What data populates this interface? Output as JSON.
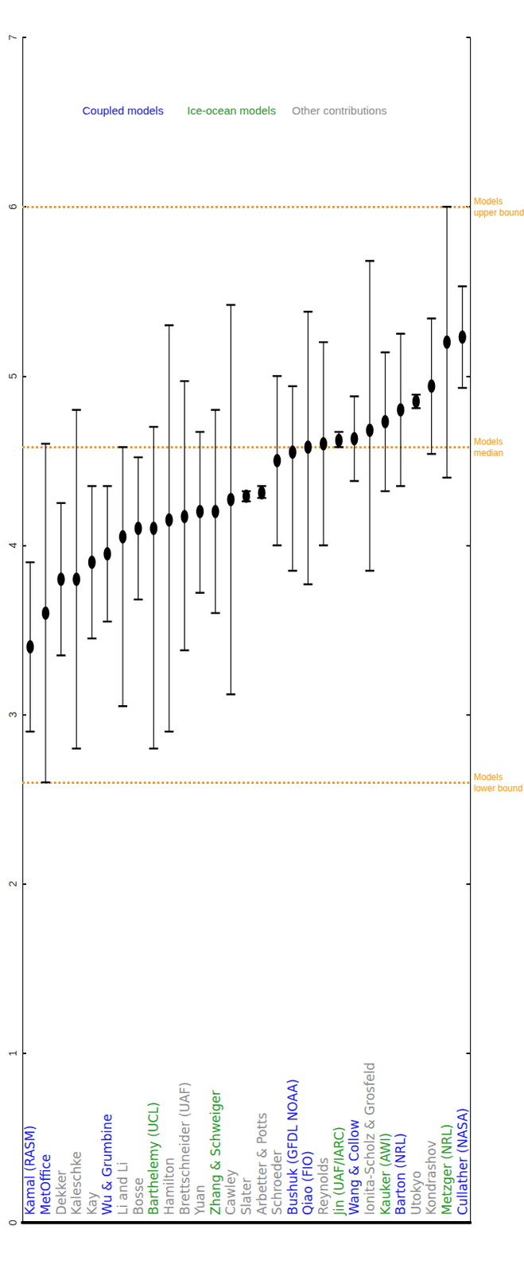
{
  "chart_data": {
    "type": "scatter",
    "categories": [
      "Kamal (RASM)",
      "MetOffice",
      "Dekker",
      "Kaleschke",
      "Kay",
      "Wu & Grumbine",
      "Li and Li",
      "Bosse",
      "Barthelemy (UCL)",
      "Hamilton",
      "Brettschneider (UAF)",
      "Yuan",
      "Zhang & Schweiger",
      "Cawley",
      "Slater",
      "Arbetter & Potts",
      "Schroeder",
      "Bushuk (GFDL NOAA)",
      "Qiao (FIO)",
      "Reynolds",
      "Jin (UAF/IARC)",
      "Wang & Collow",
      "Ionita-Scholz & Grosfeld",
      "Kauker (AWI)",
      "Barton (NRL)",
      "Utokyo",
      "Kondrashov",
      "Metzger (NRL)",
      "Cullather (NASA)"
    ],
    "values": [
      3.4,
      3.6,
      3.8,
      3.8,
      3.9,
      3.95,
      4.05,
      4.1,
      4.1,
      4.15,
      4.17,
      4.2,
      4.2,
      4.27,
      4.29,
      4.31,
      4.5,
      4.55,
      4.58,
      4.6,
      4.62,
      4.63,
      4.68,
      4.73,
      4.8,
      4.85,
      4.94,
      5.2,
      5.23
    ],
    "error_low": [
      2.9,
      2.6,
      3.35,
      2.8,
      3.45,
      3.55,
      3.05,
      3.68,
      2.8,
      2.9,
      3.38,
      3.72,
      3.6,
      3.12,
      4.26,
      4.28,
      4.0,
      3.85,
      3.77,
      4.0,
      4.58,
      4.38,
      3.85,
      4.32,
      4.35,
      4.81,
      4.54,
      4.4,
      4.93
    ],
    "error_high": [
      3.9,
      4.6,
      4.25,
      4.8,
      4.35,
      4.35,
      4.58,
      4.52,
      4.7,
      5.3,
      4.97,
      4.67,
      4.8,
      5.42,
      4.32,
      4.35,
      5.0,
      4.94,
      5.38,
      5.2,
      4.67,
      4.88,
      5.68,
      5.14,
      5.25,
      4.89,
      5.34,
      6.0,
      5.53
    ],
    "category_groups": [
      "Coupled models",
      "Coupled models",
      "Other contributions",
      "Other contributions",
      "Other contributions",
      "Coupled models",
      "Other contributions",
      "Other contributions",
      "Ice-ocean models",
      "Other contributions",
      "Other contributions",
      "Other contributions",
      "Ice-ocean models",
      "Other contributions",
      "Other contributions",
      "Other contributions",
      "Other contributions",
      "Coupled models",
      "Coupled models",
      "Other contributions",
      "Ice-ocean models",
      "Coupled models",
      "Other contributions",
      "Ice-ocean models",
      "Coupled models",
      "Other contributions",
      "Other contributions",
      "Ice-ocean models",
      "Coupled models"
    ],
    "annotations": [
      {
        "text": "Coupled models",
        "color": "#1a1aee"
      },
      {
        "text": "Ice-ocean models",
        "color": "#2a9a2a"
      },
      {
        "text": "Other contributions",
        "color": "#8c8c8c"
      }
    ],
    "reference_lines": [
      {
        "value": 6,
        "label": "Models\nupper bound",
        "color": "#ff9900"
      },
      {
        "value": 4.58,
        "label": "Models\nmedian",
        "color": "#ff9900"
      },
      {
        "value": 2.6,
        "label": "Models\nlower bound",
        "color": "#ff9900"
      }
    ],
    "color": "#000000",
    "ylim": [
      0,
      7
    ],
    "yticks": [
      0,
      1,
      2,
      3,
      4,
      5,
      6,
      7
    ],
    "grid": false
  }
}
